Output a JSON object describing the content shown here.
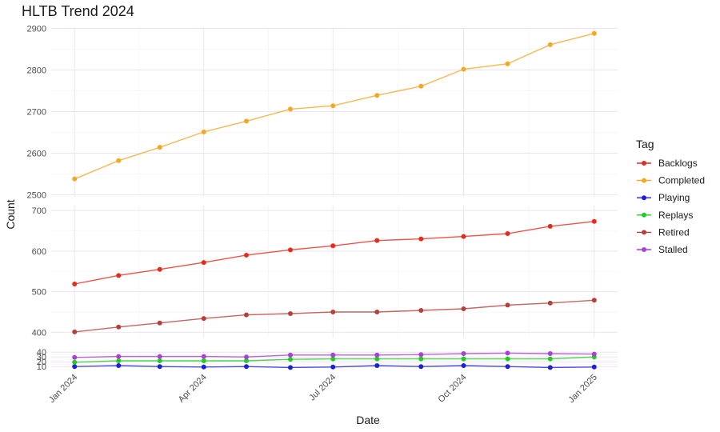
{
  "chart_data": {
    "type": "line",
    "title": "HLTB Trend 2024",
    "xlabel": "Date",
    "ylabel": "Count",
    "legend": {
      "title": "Tag",
      "placement": "right"
    },
    "grid": true,
    "x": [
      "2024-01-01",
      "2024-02-01",
      "2024-03-01",
      "2024-04-01",
      "2024-05-01",
      "2024-06-01",
      "2024-07-01",
      "2024-08-01",
      "2024-09-01",
      "2024-10-01",
      "2024-11-01",
      "2024-12-01",
      "2025-01-01"
    ],
    "x_ticks": [
      {
        "date": "2024-01-01",
        "label": "Jan 2024"
      },
      {
        "date": "2024-04-01",
        "label": "Apr 2024"
      },
      {
        "date": "2024-07-01",
        "label": "Jul 2024"
      },
      {
        "date": "2024-10-01",
        "label": "Oct 2024"
      },
      {
        "date": "2025-01-01",
        "label": "Jan 2025"
      }
    ],
    "panels": [
      {
        "name": "top",
        "ylim": [
          2495,
          2903
        ],
        "yticks": [
          2500,
          2600,
          2700,
          2800,
          2900
        ],
        "series": [
          "Completed"
        ]
      },
      {
        "name": "middle",
        "ylim": [
          387,
          712
        ],
        "yticks": [
          400,
          500,
          600,
          700
        ],
        "series": [
          "Backlogs",
          "Retired"
        ]
      },
      {
        "name": "bottom",
        "ylim": [
          7,
          42
        ],
        "yticks": [
          10,
          20,
          30,
          40
        ],
        "series": [
          "Playing",
          "Replays",
          "Stalled"
        ]
      }
    ],
    "series": [
      {
        "name": "Backlogs",
        "color": "#e8291c",
        "values": [
          519,
          540,
          555,
          572,
          590,
          603,
          613,
          626,
          630,
          636,
          643,
          661,
          673
        ]
      },
      {
        "name": "Completed",
        "color": "#f5a623",
        "values": [
          2538,
          2582,
          2614,
          2651,
          2677,
          2706,
          2714,
          2739,
          2761,
          2802,
          2815,
          2861,
          2888
        ]
      },
      {
        "name": "Playing",
        "color": "#1f1fd6",
        "values": [
          10,
          12,
          10,
          9,
          10,
          8,
          9,
          12,
          10,
          12,
          10,
          8,
          9
        ]
      },
      {
        "name": "Replays",
        "color": "#22cc22",
        "values": [
          19,
          22,
          22,
          22,
          22,
          25,
          26,
          26,
          26,
          26,
          26,
          26,
          30
        ]
      },
      {
        "name": "Retired",
        "color": "#b5403a",
        "values": [
          401,
          413,
          423,
          434,
          443,
          446,
          450,
          450,
          454,
          458,
          467,
          472,
          479
        ]
      },
      {
        "name": "Stalled",
        "color": "#a940d8",
        "values": [
          29,
          31,
          31,
          31,
          30,
          34,
          34,
          34,
          35,
          37,
          38,
          37,
          36
        ]
      }
    ]
  }
}
